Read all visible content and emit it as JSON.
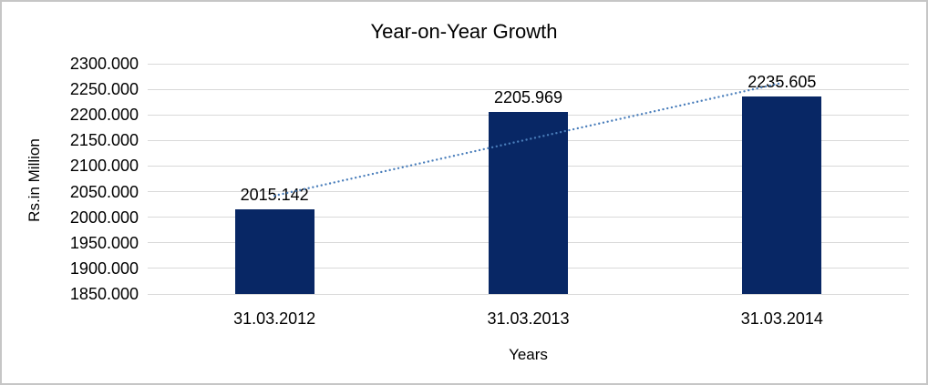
{
  "frame": {
    "background": "#ffffff",
    "border_color": "#c6c6c6"
  },
  "chart_data": {
    "type": "bar",
    "title": "Year-on-Year Growth",
    "xlabel": "Years",
    "ylabel": "Rs.in Million",
    "categories": [
      "31.03.2012",
      "31.03.2013",
      "31.03.2014"
    ],
    "values": [
      2015.142,
      2205.969,
      2235.605
    ],
    "data_labels": [
      "2015.142",
      "2205.969",
      "2235.605"
    ],
    "ylim": [
      1850,
      2300
    ],
    "ytick_interval": 50,
    "ytick_labels": [
      "2300.000",
      "2250.000",
      "2200.000",
      "2150.000",
      "2100.000",
      "2050.000",
      "2000.000",
      "1950.000",
      "1900.000",
      "1850.000"
    ],
    "grid": true,
    "legend_position": "none",
    "bar_color": "#082765",
    "gridline_color": "#d9d9d9",
    "label_color": "#000000",
    "trendline": {
      "type": "linear",
      "style": "dotted",
      "color": "#4a7ebb",
      "start_value": 2042.0,
      "end_value": 2262.5
    }
  }
}
